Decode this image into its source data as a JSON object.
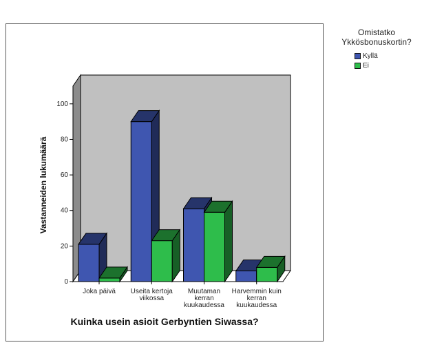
{
  "chart_data": {
    "type": "bar",
    "xlabel": "Kuinka usein asioit Gerbyntien Siwassa?",
    "ylabel": "Vastanneiden lukumäärä",
    "ylim": [
      0,
      110
    ],
    "yticks": [
      0,
      20,
      40,
      60,
      80,
      100
    ],
    "categories": [
      [
        "Joka päivä"
      ],
      [
        "Useita kertoja",
        "viikossa"
      ],
      [
        "Muutaman",
        "kerran",
        "kuukaudessa"
      ],
      [
        "Harvemmin kuin",
        "kerran",
        "kuukaudessa"
      ]
    ],
    "legend_title": [
      "Omistatko",
      "Ykkösbonuskortin?"
    ],
    "series": [
      {
        "name": "Kyllä",
        "values": [
          21,
          90,
          41,
          6
        ],
        "color": "#3f56b0"
      },
      {
        "name": "Ei",
        "values": [
          2,
          23,
          39,
          8
        ],
        "color": "#2ebd4b"
      }
    ],
    "colors": {
      "wall": "#c0c0c0",
      "side_wall": "#8c8c8c"
    },
    "grid": false,
    "legend_position": "right"
  }
}
